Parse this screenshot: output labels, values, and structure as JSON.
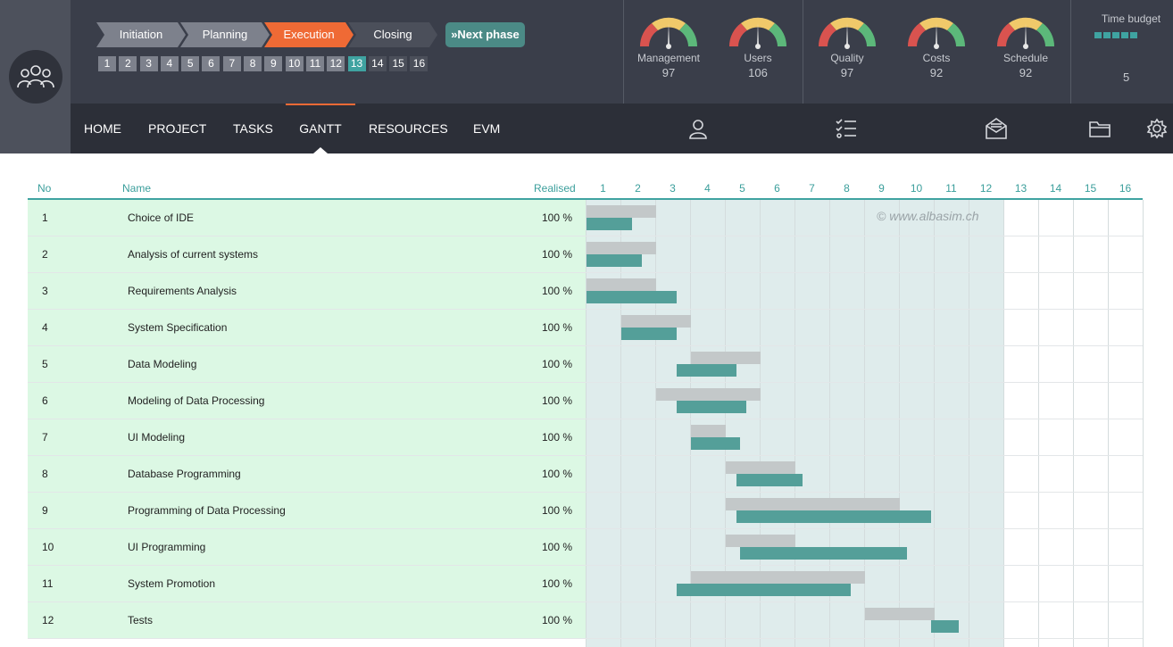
{
  "phases": [
    {
      "label": "Initiation",
      "state": "done"
    },
    {
      "label": "Planning",
      "state": "done"
    },
    {
      "label": "Execution",
      "state": "current"
    },
    {
      "label": "Closing",
      "state": "todo"
    }
  ],
  "next_phase_label": "Next phase",
  "weeks": [
    "1",
    "2",
    "3",
    "4",
    "5",
    "6",
    "7",
    "8",
    "9",
    "10",
    "11",
    "12",
    "13",
    "14",
    "15",
    "16"
  ],
  "current_week": 13,
  "gauges": [
    {
      "label": "Management",
      "value": "97"
    },
    {
      "label": "Users",
      "value": "106"
    },
    {
      "label": "Quality",
      "value": "97"
    },
    {
      "label": "Costs",
      "value": "92"
    },
    {
      "label": "Schedule",
      "value": "92"
    }
  ],
  "gauge_colors": {
    "bad": "#d9534f",
    "mid": "#f0c96a",
    "good": "#5cb87a"
  },
  "time_budget": {
    "title": "Time budget",
    "value": "5",
    "segments": 5
  },
  "nav": [
    {
      "label": "HOME",
      "active": false
    },
    {
      "label": "PROJECT",
      "active": false
    },
    {
      "label": "TASKS",
      "active": false
    },
    {
      "label": "GANTT",
      "active": true
    },
    {
      "label": "RESOURCES",
      "active": false
    },
    {
      "label": "EVM",
      "active": false
    }
  ],
  "nav_icons": [
    "user-icon",
    "checklist-icon",
    "mail-icon",
    "folder-icon",
    "gear-icon"
  ],
  "gantt": {
    "headers": {
      "no": "No",
      "name": "Name",
      "realised": "Realised"
    },
    "months": [
      "1",
      "2",
      "3",
      "4",
      "5",
      "6",
      "7",
      "8",
      "9",
      "10",
      "11",
      "12",
      "13",
      "14",
      "15",
      "16"
    ],
    "watermark": "© www.albasim.ch",
    "tasks": [
      {
        "no": "1",
        "name": "Choice of IDE",
        "realised": "100 %",
        "plan": [
          0,
          2
        ],
        "real": [
          0,
          1.3
        ]
      },
      {
        "no": "2",
        "name": "Analysis of current systems",
        "realised": "100 %",
        "plan": [
          0,
          2
        ],
        "real": [
          0,
          1.6
        ]
      },
      {
        "no": "3",
        "name": "Requirements Analysis",
        "realised": "100 %",
        "plan": [
          0,
          2
        ],
        "real": [
          0,
          2.6
        ]
      },
      {
        "no": "4",
        "name": "System Specification",
        "realised": "100 %",
        "plan": [
          1,
          3
        ],
        "real": [
          1,
          2.6
        ]
      },
      {
        "no": "5",
        "name": "Data Modeling",
        "realised": "100 %",
        "plan": [
          3,
          5
        ],
        "real": [
          2.6,
          4.3
        ]
      },
      {
        "no": "6",
        "name": "Modeling of Data Processing",
        "realised": "100 %",
        "plan": [
          2,
          5
        ],
        "real": [
          2.6,
          4.6
        ]
      },
      {
        "no": "7",
        "name": "UI Modeling",
        "realised": "100 %",
        "plan": [
          3,
          4
        ],
        "real": [
          3,
          4.4
        ]
      },
      {
        "no": "8",
        "name": "Database Programming",
        "realised": "100 %",
        "plan": [
          4,
          6
        ],
        "real": [
          4.3,
          6.2
        ]
      },
      {
        "no": "9",
        "name": "Programming of Data Processing",
        "realised": "100 %",
        "plan": [
          4,
          9
        ],
        "real": [
          4.3,
          9.9
        ]
      },
      {
        "no": "10",
        "name": "UI Programming",
        "realised": "100 %",
        "plan": [
          4,
          6
        ],
        "real": [
          4.4,
          9.2
        ]
      },
      {
        "no": "11",
        "name": "System Promotion",
        "realised": "100 %",
        "plan": [
          3,
          8
        ],
        "real": [
          2.6,
          7.6
        ]
      },
      {
        "no": "12",
        "name": "Tests",
        "realised": "100 %",
        "plan": [
          8,
          10
        ],
        "real": [
          9.9,
          10.7
        ]
      }
    ]
  }
}
